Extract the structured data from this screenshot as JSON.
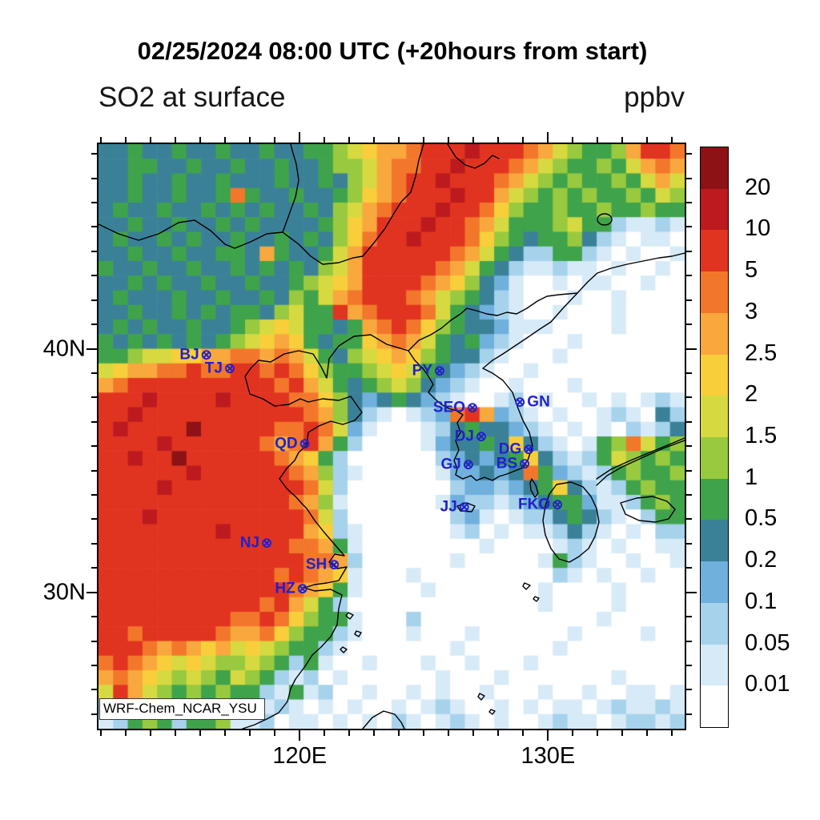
{
  "titles": {
    "datetime": "02/25/2024 08:00 UTC (+20hours from start)",
    "variable": "SO2 at surface",
    "units": "ppbv",
    "model": "WRF-Chem_NCAR_YSU"
  },
  "axes": {
    "x_major": [
      {
        "lon": 120,
        "label": "120E"
      },
      {
        "lon": 130,
        "label": "130E"
      }
    ],
    "y_major": [
      {
        "lat": 40,
        "label": "40N"
      },
      {
        "lat": 30,
        "label": "30N"
      }
    ]
  },
  "chart_data": {
    "type": "heatmap",
    "title": "SO2 at surface",
    "units": "ppbv",
    "valid_time": "02/25/2024 08:00 UTC",
    "forecast_offset": "+20hours from start",
    "model": "WRF-Chem_NCAR_YSU",
    "lon_range": [
      111.9,
      135.5
    ],
    "lat_range": [
      24.4,
      48.4
    ],
    "levels": [
      0.01,
      0.05,
      0.1,
      0.2,
      0.5,
      1,
      1.5,
      2,
      2.5,
      3,
      5,
      10,
      20
    ],
    "grid_encoding": "rows top-to-bottom, 40x40 cells; char -> ppbv bin: .=<0.01 1=0.01-0.05 2=0.05-0.1 3=0.1-0.2 4=0.2-0.5 5=0.5-1 6=1-1.5 7=1.5-2 8=2-2.5 9=2.5-3 A=3-5 B=5-10 C=10-20 D=>20",
    "palette": {
      ".": "#ffffff",
      "1": "#d7eaf7",
      "2": "#a6d2ec",
      "3": "#70b0dc",
      "4": "#3a8198",
      "5": "#3fa34b",
      "6": "#99c93f",
      "7": "#d6d93f",
      "8": "#f8ce3b",
      "9": "#f8a83c",
      "A": "#f2772b",
      "B": "#e13420",
      "C": "#bc1a1e",
      "D": "#8c1216"
    },
    "grid": [
      "445445445445445567899ABBBCBBBA9765569BBA",
      "44554454454454456679AABBCBBBA976556579A9",
      "44544544544454454679ABBCBBBA976565565797",
      "445445445A5445445689ABBBCBB9765656556576",
      "4544544545454454679ABBBCBBA8655655655655",
      "4454454454544445689BBBCBBA97555675521121",
      "454454544544545468ABBCBBBA8654556421.11.",
      "445445445549544579BBBBBBA9754225521.1..1",
      "544544544545454679BBBBBA9754211211.1..1.",
      "445454454454456789BBBBA986431..1.11..1..",
      "45444544544546579ABBBA9765421...1..1....",
      "4454454545546755B9ABBBA754321..1...1....",
      "4545445445678755459ABA865443111....1....",
      "54545454567898545589A97545321...1.......",
      "556778899AA9A975467898654421...1........",
      "7899AABAABBABA8655678754321..1..........",
      "9ABBBBBBBBBBAB975456764321..1...1.......",
      "BBBCBBBBCBBBBAA8643454321..12.1..1.1.121",
      "BBCBBBBBBBBBBBA96421.123AB9321.1..121.42",
      "BCBBBBDBBBBBAABA731...124544321.1.1.2124",
      "BBBBCBBBBBBA9AB952....1344548421.156A756",
      "BBCBBDBBBBBBA9852......23434584212576565",
      "BBBBBBCBBBBBBA9621.....133434A5321256556",
      "BBBBCBBBBBBBBBA72.......2332345842125655",
      "BBBBBBBBBBBBBA961......13221234553112565",
      "BBBCBBBBBBBBBBA72.......231.12245421.255",
      "BBBBBBBBCBBBBB9821......12.1.112421.1.22",
      "BBBBBBBBBBBBBAA951........1....121.1..11",
      "BBBBBBBBBBBBBBAA92......1.....1521..1..1",
      "BBBBBBBBBBBBABA981...1.........21.1..1..",
      "BBBBBBBBBBBBBA9851....1.......1....1....",
      "BBBBBBBBBBBAB9752.............1....1...",
      "BBBBBBBBBAABA86551...2............1.....",
      "BBABBBBBA99A865521...1...1......1....1..",
      "BBBA9A98978765521.......1......1........",
      "ABA9878766765251..1...1..1...1..........",
      "9A9876765765212.1......1...1.......1....",
      "7B97656565521512..1..1.1..1...1..1..11.1",
      "25675652562121.1.1..1.121..1.1.11.121121",
      "125652556112.11.1.1.21.121.1..1211.12212"
    ],
    "colorbar": {
      "colors_top_to_bottom": [
        "#8c1216",
        "#bc1a1e",
        "#e13420",
        "#f2772b",
        "#f8a83c",
        "#f8ce3b",
        "#d6d93f",
        "#99c93f",
        "#3fa34b",
        "#3a8198",
        "#70b0dc",
        "#a6d2ec",
        "#d7eaf7",
        "#ffffff"
      ],
      "labels_top_to_bottom": [
        "20",
        "10",
        "5",
        "3",
        "2.5",
        "2",
        "1.5",
        "1",
        "0.5",
        "0.2",
        "0.1",
        "0.05",
        "0.01"
      ]
    },
    "stations": [
      {
        "label": "BJ",
        "x_pct": 18.4,
        "y_pct": 36.2,
        "side": "left"
      },
      {
        "label": "TJ",
        "x_pct": 22.4,
        "y_pct": 38.5,
        "side": "left"
      },
      {
        "label": "PY",
        "x_pct": 58.2,
        "y_pct": 38.9,
        "side": "left"
      },
      {
        "label": "SEO",
        "x_pct": 63.8,
        "y_pct": 45.2,
        "side": "left"
      },
      {
        "label": "GN",
        "x_pct": 71.9,
        "y_pct": 44.2,
        "side": "right"
      },
      {
        "label": "DJ",
        "x_pct": 65.3,
        "y_pct": 50.1,
        "side": "left"
      },
      {
        "label": "QD",
        "x_pct": 35.2,
        "y_pct": 51.4,
        "side": "left"
      },
      {
        "label": "DG",
        "x_pct": 73.4,
        "y_pct": 52.3,
        "side": "left"
      },
      {
        "label": "GJ",
        "x_pct": 63.1,
        "y_pct": 54.9,
        "side": "left"
      },
      {
        "label": "BS",
        "x_pct": 72.7,
        "y_pct": 54.8,
        "side": "left"
      },
      {
        "label": "JJ",
        "x_pct": 62.4,
        "y_pct": 62.2,
        "side": "left"
      },
      {
        "label": "FKO",
        "x_pct": 78.3,
        "y_pct": 61.8,
        "side": "left"
      },
      {
        "label": "NJ",
        "x_pct": 28.7,
        "y_pct": 68.4,
        "side": "left"
      },
      {
        "label": "SH",
        "x_pct": 40.2,
        "y_pct": 72.1,
        "side": "left"
      },
      {
        "label": "HZ",
        "x_pct": 34.8,
        "y_pct": 76.2,
        "side": "left"
      }
    ],
    "marker_symbol": "⊗"
  }
}
